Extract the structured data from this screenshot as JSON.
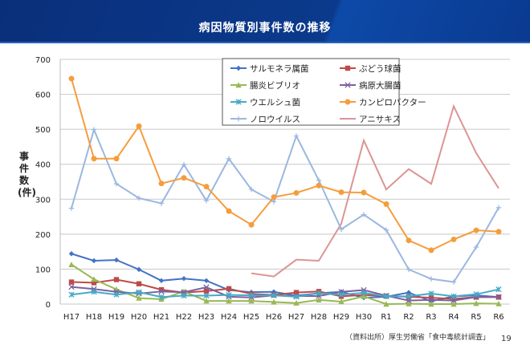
{
  "page": {
    "title": "病因物質別事件数の推移",
    "source": "（資料出所）厚生労働省「食中毒統計調査」",
    "page_number": "19"
  },
  "chart_data": {
    "type": "line",
    "title": "",
    "xlabel": "",
    "ylabel": "事件数(件)",
    "ylim": [
      0,
      700
    ],
    "yticks": [
      0,
      100,
      200,
      300,
      400,
      500,
      600,
      700
    ],
    "grid": true,
    "legend": "top-center",
    "categories": [
      "H17",
      "H18",
      "H19",
      "H20",
      "H21",
      "H22",
      "H23",
      "H24",
      "H25",
      "H26",
      "H27",
      "H28",
      "H29",
      "H30",
      "R1",
      "R2",
      "R3",
      "R4",
      "R5",
      "R6"
    ],
    "series": [
      {
        "name": "サルモネラ属菌",
        "color": "#4472c4",
        "marker": "diamond",
        "values": [
          144,
          124,
          126,
          99,
          67,
          73,
          67,
          40,
          34,
          35,
          24,
          31,
          35,
          18,
          21,
          33,
          8,
          22,
          25,
          20
        ]
      },
      {
        "name": "ぶどう球菌",
        "color": "#be4b48",
        "marker": "square",
        "values": [
          63,
          61,
          70,
          58,
          41,
          33,
          37,
          44,
          29,
          26,
          33,
          36,
          22,
          26,
          23,
          21,
          18,
          15,
          20,
          20
        ]
      },
      {
        "name": "腸炎ビブリオ",
        "color": "#98b954",
        "marker": "triangle",
        "values": [
          113,
          71,
          42,
          17,
          14,
          36,
          9,
          9,
          9,
          6,
          3,
          12,
          7,
          22,
          0,
          1,
          0,
          0,
          2,
          1
        ]
      },
      {
        "name": "病原大腸菌",
        "color": "#7d60a0",
        "marker": "x",
        "values": [
          49,
          43,
          35,
          30,
          36,
          34,
          48,
          21,
          19,
          25,
          23,
          23,
          35,
          40,
          24,
          10,
          12,
          10,
          20,
          20
        ]
      },
      {
        "name": "ウエルシュ菌",
        "color": "#46aac5",
        "marker": "star",
        "values": [
          27,
          35,
          27,
          34,
          20,
          24,
          24,
          26,
          25,
          25,
          21,
          31,
          27,
          32,
          22,
          22,
          30,
          22,
          28,
          42
        ]
      },
      {
        "name": "カンピロバクター",
        "color": "#f59d3d",
        "marker": "circle",
        "values": [
          645,
          416,
          416,
          509,
          345,
          361,
          336,
          266,
          227,
          306,
          318,
          339,
          320,
          319,
          286,
          182,
          154,
          185,
          211,
          207
        ]
      },
      {
        "name": "ノロウイルス",
        "color": "#9bb7e0",
        "marker": "plus",
        "values": [
          274,
          499,
          344,
          303,
          288,
          399,
          296,
          416,
          328,
          293,
          481,
          354,
          214,
          256,
          212,
          99,
          72,
          63,
          163,
          276
        ]
      },
      {
        "name": "アニサキス",
        "color": "#db9593",
        "marker": "none",
        "values": [
          null,
          null,
          null,
          null,
          null,
          null,
          null,
          null,
          88,
          79,
          127,
          124,
          230,
          468,
          328,
          386,
          344,
          566,
          432,
          331
        ]
      }
    ]
  }
}
